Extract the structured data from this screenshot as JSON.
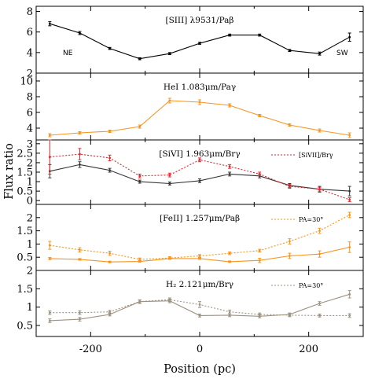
{
  "chart_data": {
    "type": "line",
    "xlabel": "Position (pc)",
    "ylabel": "Flux ratio",
    "xlim": [
      -300,
      300
    ],
    "x_ticks": [
      -200,
      0,
      200
    ],
    "panels": [
      {
        "title": "[SIII] λ9531/Paβ",
        "ylim": [
          2,
          8.5
        ],
        "y_ticks": [
          2,
          4,
          6,
          8
        ],
        "corner_left": "NE",
        "corner_right": "SW",
        "series": [
          {
            "color": "#000000",
            "style": "solid",
            "x": [
              -275,
              -220,
              -165,
              -110,
              -55,
              0,
              55,
              110,
              165,
              220,
              275
            ],
            "y": [
              6.8,
              5.9,
              4.4,
              3.4,
              3.9,
              4.9,
              5.7,
              5.7,
              4.2,
              3.9,
              5.5
            ],
            "err": [
              0.2,
              0.15,
              0.1,
              0.1,
              0.1,
              0.1,
              0.1,
              0.1,
              0.1,
              0.15,
              0.4
            ]
          }
        ]
      },
      {
        "title": "HeI 1.083μm/Paγ",
        "ylim": [
          2.5,
          11
        ],
        "y_ticks": [
          4,
          6,
          8,
          10
        ],
        "series": [
          {
            "color": "#f7941d",
            "style": "solid",
            "x": [
              -275,
              -220,
              -165,
              -110,
              -55,
              0,
              55,
              110,
              165,
              220,
              275
            ],
            "y": [
              3.1,
              3.4,
              3.6,
              4.2,
              7.5,
              7.3,
              6.9,
              5.6,
              4.4,
              3.7,
              3.1
            ],
            "err": [
              0.2,
              0.15,
              0.15,
              0.2,
              0.3,
              0.3,
              0.2,
              0.15,
              0.15,
              0.2,
              0.3
            ]
          }
        ]
      },
      {
        "title": "[SiVI] 1.963μm/Brγ",
        "ylim": [
          -0.2,
          3.2
        ],
        "y_ticks": [
          0,
          0.5,
          1,
          1.5,
          2,
          2.5,
          3
        ],
        "legend": "[SiVII]/Brγ",
        "series": [
          {
            "color": "#333333",
            "style": "solid",
            "x": [
              -275,
              -220,
              -165,
              -110,
              -55,
              0,
              55,
              110,
              165,
              220,
              275
            ],
            "y": [
              1.55,
              1.9,
              1.6,
              1.0,
              0.9,
              1.05,
              1.4,
              1.3,
              0.8,
              0.6,
              0.5
            ],
            "err": [
              0.35,
              0.15,
              0.1,
              0.08,
              0.08,
              0.1,
              0.1,
              0.1,
              0.1,
              0.15,
              0.25
            ]
          },
          {
            "name": "[SiVII]/Brγ",
            "color": "#e8232a",
            "style": "dotted",
            "x": [
              -275,
              -220,
              -165,
              -110,
              -55,
              0,
              55,
              110,
              165,
              220,
              275
            ],
            "y": [
              2.3,
              2.45,
              2.25,
              1.3,
              1.35,
              2.15,
              1.8,
              1.4,
              0.75,
              0.6,
              0.05
            ],
            "err": [
              0.9,
              0.3,
              0.15,
              0.1,
              0.1,
              0.1,
              0.1,
              0.1,
              0.1,
              0.1,
              0.1
            ]
          }
        ]
      },
      {
        "title": "[FeII] 1.257μm/Paβ",
        "ylim": [
          0,
          2.5
        ],
        "y_ticks": [
          0.5,
          1,
          1.5,
          2
        ],
        "legend": "PA=30°",
        "series": [
          {
            "color": "#f7941d",
            "style": "solid",
            "x": [
              -275,
              -220,
              -165,
              -110,
              -55,
              0,
              55,
              110,
              165,
              220,
              275
            ],
            "y": [
              0.45,
              0.42,
              0.32,
              0.34,
              0.45,
              0.45,
              0.33,
              0.38,
              0.55,
              0.62,
              0.88
            ],
            "err": [
              0.04,
              0.03,
              0.03,
              0.03,
              0.03,
              0.03,
              0.03,
              0.08,
              0.1,
              0.12,
              0.2
            ]
          },
          {
            "name": "PA=30°",
            "color": "#f7941d",
            "style": "dotted",
            "x": [
              -275,
              -220,
              -165,
              -110,
              -55,
              0,
              55,
              110,
              165,
              220,
              275
            ],
            "y": [
              0.95,
              0.78,
              0.65,
              0.42,
              0.47,
              0.55,
              0.65,
              0.75,
              1.1,
              1.5,
              2.1
            ],
            "err": [
              0.15,
              0.08,
              0.08,
              0.05,
              0.05,
              0.05,
              0.05,
              0.05,
              0.1,
              0.1,
              0.1
            ]
          }
        ]
      },
      {
        "title": "H₂ 2.121μm/Brγ",
        "ylim": [
          0.2,
          2.0
        ],
        "y_ticks": [
          0.5,
          1,
          1.5,
          2
        ],
        "legend": "PA=30°",
        "series": [
          {
            "color": "#9d9280",
            "style": "solid",
            "x": [
              -275,
              -220,
              -165,
              -110,
              -55,
              0,
              55,
              110,
              165,
              220,
              275
            ],
            "y": [
              0.63,
              0.67,
              0.8,
              1.15,
              1.17,
              0.77,
              0.78,
              0.75,
              0.8,
              1.1,
              1.35
            ],
            "err": [
              0.05,
              0.05,
              0.04,
              0.04,
              0.05,
              0.04,
              0.04,
              0.04,
              0.04,
              0.05,
              0.1
            ]
          },
          {
            "name": "PA=30°",
            "color": "#9d9280",
            "style": "dotted",
            "x": [
              -275,
              -220,
              -165,
              -110,
              -55,
              0,
              55,
              110,
              165,
              220,
              275
            ],
            "y": [
              0.85,
              0.85,
              0.87,
              1.15,
              1.2,
              1.07,
              0.87,
              0.8,
              0.78,
              0.77,
              0.77
            ],
            "err": [
              0.05,
              0.05,
              0.04,
              0.05,
              0.05,
              0.08,
              0.05,
              0.04,
              0.04,
              0.04,
              0.05
            ]
          }
        ]
      }
    ]
  }
}
